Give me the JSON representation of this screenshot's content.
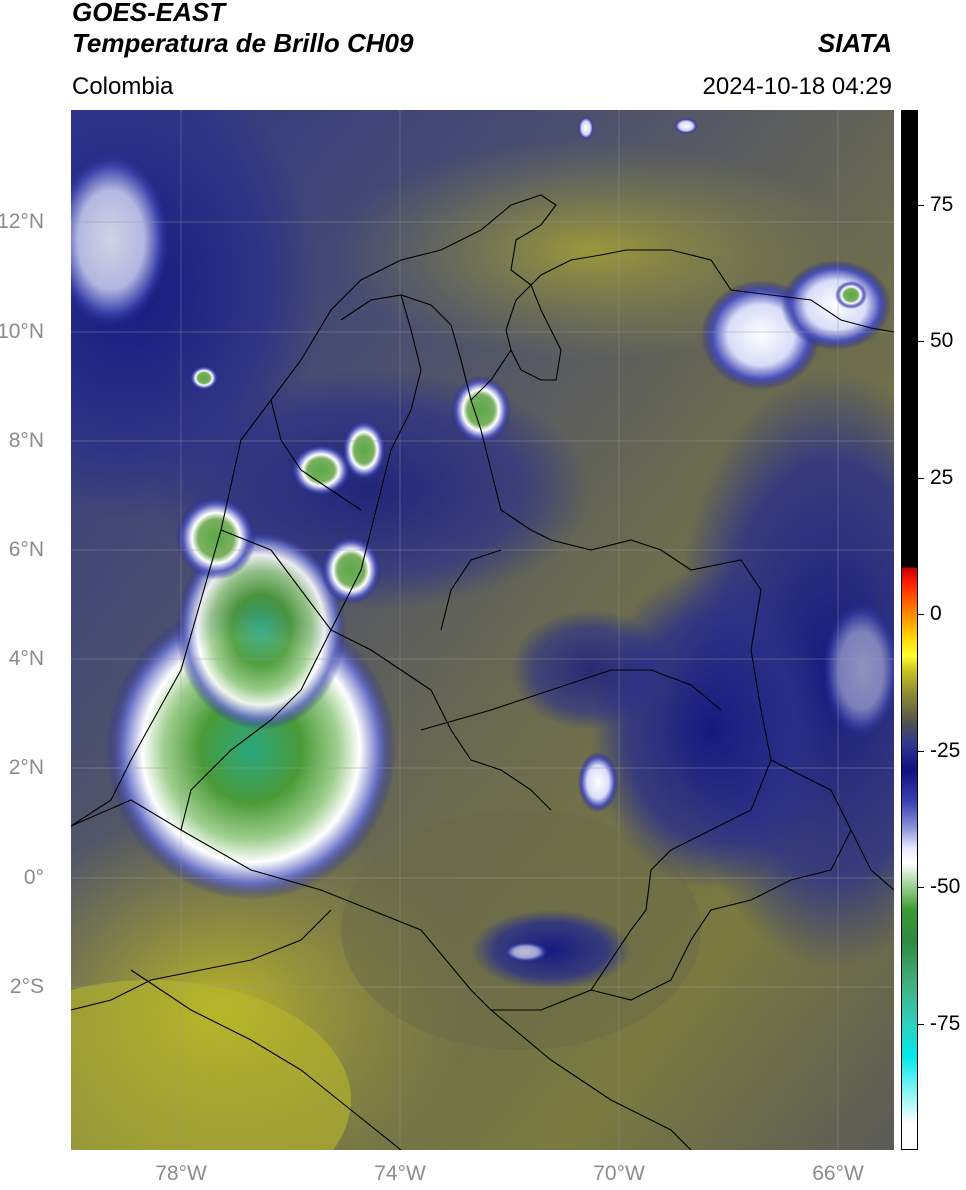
{
  "header": {
    "line1": "GOES-EAST",
    "line2": "Temperatura de Brillo CH09",
    "organization": "SIATA",
    "region": "Colombia",
    "datetime": "2024-10-18 04:29"
  },
  "map": {
    "lat_labels": [
      "12°N",
      "10°N",
      "8°N",
      "6°N",
      "4°N",
      "2°N",
      "0°",
      "2°S"
    ],
    "lon_labels": [
      "78°W",
      "74°W",
      "70°W",
      "66°W"
    ],
    "extent": {
      "lon_min": -80,
      "lon_max": -65,
      "lat_min": -5,
      "lat_max": 14
    }
  },
  "colorbar": {
    "ticks": [
      "75",
      "50",
      "25",
      "0",
      "-25",
      "-50",
      "-75"
    ],
    "tick_values": [
      75,
      50,
      25,
      0,
      -25,
      -50,
      -75
    ],
    "range": [
      -100,
      90
    ]
  }
}
